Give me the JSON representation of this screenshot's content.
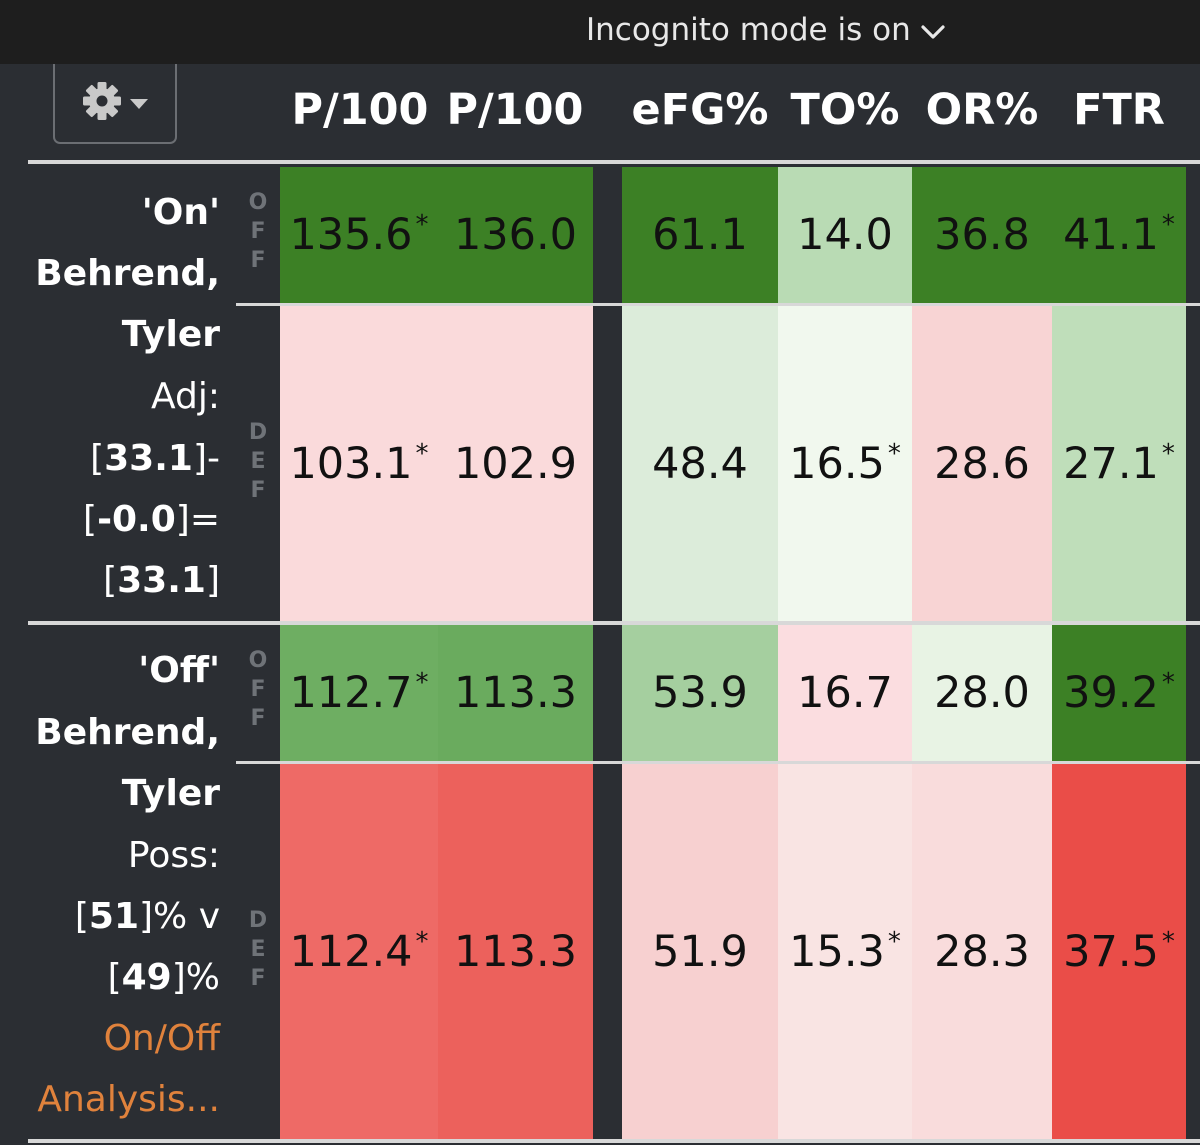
{
  "browser": {
    "incognito_text": "Incognito mode is on"
  },
  "toolbar": {
    "settings_icon": "gear-icon",
    "dropdown_icon": "caret-down-icon"
  },
  "columns": [
    "P/100",
    "P/100",
    "eFG%",
    "TO%",
    "OR%",
    "FTR"
  ],
  "sections": [
    {
      "label": {
        "line1": "'On'",
        "line2": "Behrend,",
        "line3": "Tyler",
        "line4": "Adj:",
        "line5_pre": "[",
        "line5_val": "33.1",
        "line5_post": "]-",
        "line6_pre": "[",
        "line6_val": "-0.0",
        "line6_post": "]=",
        "line7_pre": "[",
        "line7_val": "33.1",
        "line7_post": "]"
      },
      "off": {
        "tag": "OFF",
        "values": [
          "135.6",
          "136.0",
          "61.1",
          "14.0",
          "36.8",
          "41.1"
        ],
        "starred": [
          true,
          false,
          false,
          false,
          false,
          true
        ],
        "colors": [
          "#3c8025",
          "#3c8025",
          "#3c8025",
          "#b9dbb4",
          "#3c8025",
          "#3c8025"
        ]
      },
      "def": {
        "tag": "DEF",
        "values": [
          "103.1",
          "102.9",
          "48.4",
          "16.5",
          "28.6",
          "27.1"
        ],
        "starred": [
          true,
          false,
          false,
          true,
          false,
          true
        ],
        "colors": [
          "#fadadb",
          "#fadadb",
          "#dcecda",
          "#f1f8ee",
          "#f8d4d4",
          "#bfdeba"
        ]
      }
    },
    {
      "label": {
        "line1": "'Off'",
        "line2": "Behrend,",
        "line3": "Tyler",
        "line4": "Poss:",
        "line5_pre": "[",
        "line5_val": "51",
        "line5_post": "]% v",
        "line6_pre": "[",
        "line6_val": "49",
        "line6_post": "]%",
        "line7": "On/Off",
        "line8": "Analysis..."
      },
      "off": {
        "tag": "OFF",
        "values": [
          "112.7",
          "113.3",
          "53.9",
          "16.7",
          "28.0",
          "39.2"
        ],
        "starred": [
          true,
          false,
          false,
          false,
          false,
          true
        ],
        "colors": [
          "#6eae62",
          "#6aab5e",
          "#a5cf9f",
          "#fbdde0",
          "#e8f3e4",
          "#3c8025"
        ]
      },
      "def": {
        "tag": "DEF",
        "values": [
          "112.4",
          "113.3",
          "51.9",
          "15.3",
          "28.3",
          "37.5"
        ],
        "starred": [
          true,
          false,
          false,
          true,
          false,
          true
        ],
        "colors": [
          "#ee6a66",
          "#ec615c",
          "#f7d0d0",
          "#f9e4e3",
          "#f9dcdc",
          "#ea4d48"
        ]
      }
    }
  ]
}
